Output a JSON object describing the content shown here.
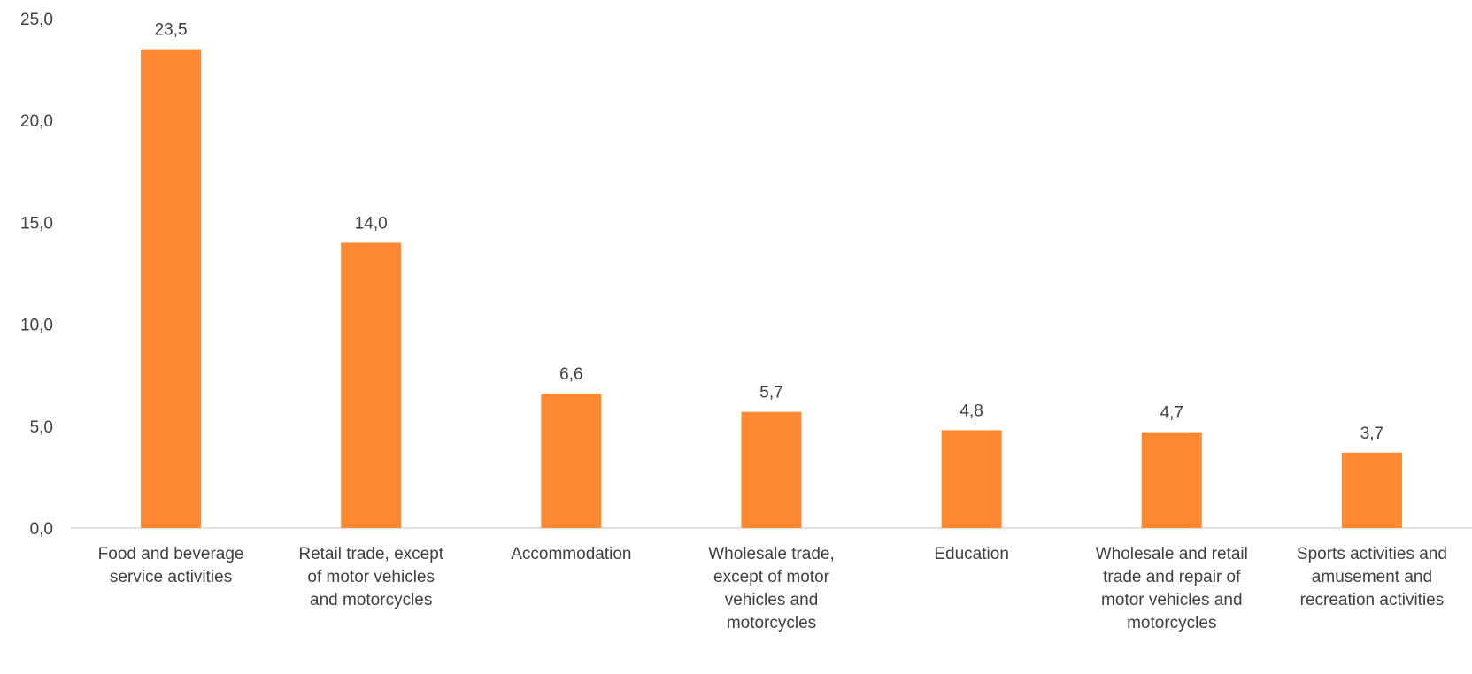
{
  "chart_data": {
    "type": "bar",
    "title": "",
    "xlabel": "",
    "ylabel": "",
    "ylim": [
      0,
      25
    ],
    "yticks": [
      "0,0",
      "5,0",
      "10,0",
      "15,0",
      "20,0",
      "25,0"
    ],
    "categories": [
      [
        "Food and beverage",
        "service activities"
      ],
      [
        "Retail trade, except",
        "of motor vehicles",
        "and motorcycles"
      ],
      [
        "Accommodation"
      ],
      [
        "Wholesale trade,",
        "except of motor",
        "vehicles and",
        "motorcycles"
      ],
      [
        "Education"
      ],
      [
        "Wholesale and retail",
        "trade and repair of",
        "motor vehicles and",
        "motorcycles"
      ],
      [
        "Sports activities and",
        "amusement and",
        "recreation activities"
      ]
    ],
    "values": [
      23.5,
      14.0,
      6.6,
      5.7,
      4.8,
      4.7,
      3.7
    ],
    "data_labels": [
      "23,5",
      "14,0",
      "6,6",
      "5,7",
      "4,8",
      "4,7",
      "3,7"
    ],
    "grid": false,
    "legend": "none",
    "colors": {
      "bar": "#FF8833",
      "axis": "#D9D9D9",
      "text": "#404040"
    }
  }
}
